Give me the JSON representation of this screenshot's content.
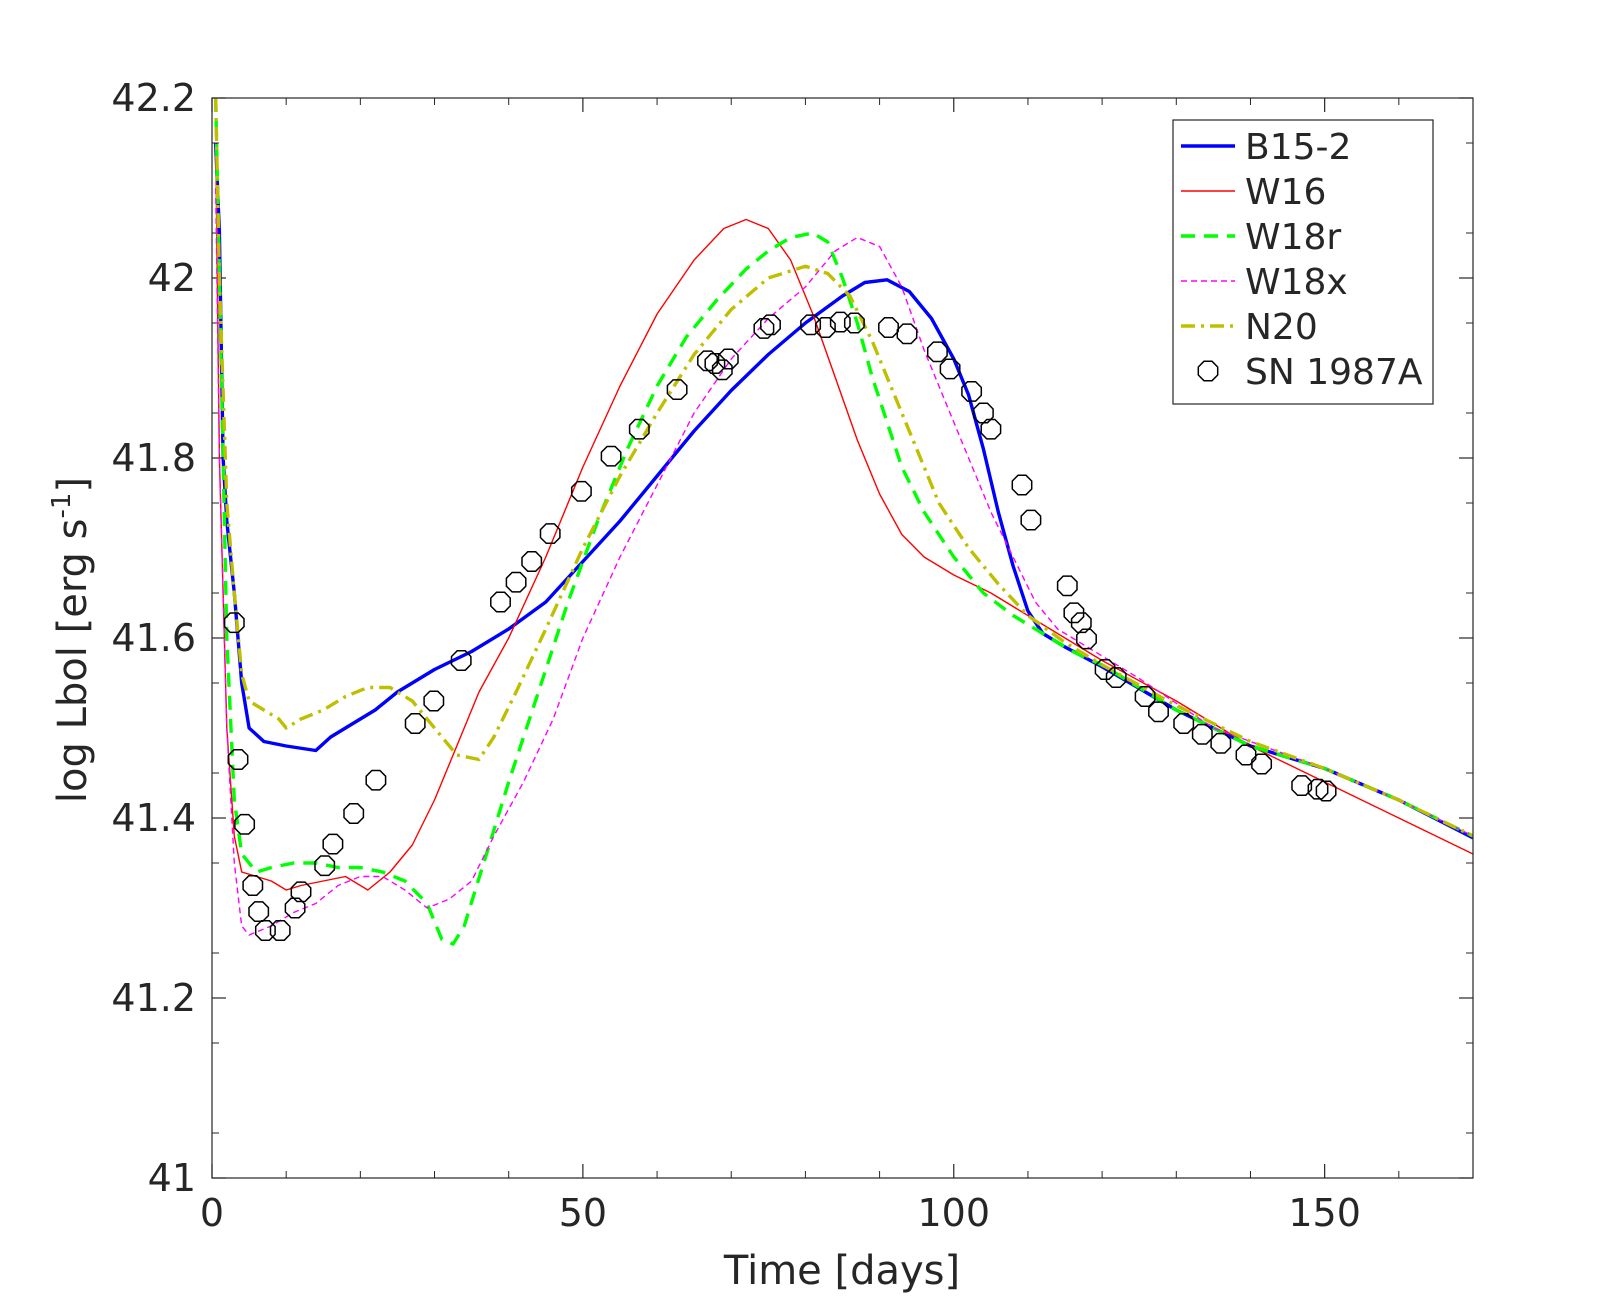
{
  "chart_data": {
    "type": "line",
    "xlabel": "Time [days]",
    "ylabel_main": "log Lbol [erg s",
    "ylabel_sup": "-1",
    "ylabel_close": "]",
    "xlim": [
      0,
      170
    ],
    "ylim": [
      41,
      42.2
    ],
    "x_ticks": [
      0,
      50,
      100,
      150
    ],
    "x_tick_labels": [
      "0",
      "50",
      "100",
      "150"
    ],
    "y_ticks": [
      41,
      41.2,
      41.4,
      41.6,
      41.8,
      42,
      42.2
    ],
    "y_tick_labels": [
      "41",
      "41.2",
      "41.4",
      "41.6",
      "41.8",
      "42",
      "42.2"
    ],
    "grid": false,
    "legend_position": "top-right",
    "series": [
      {
        "name": "B15-2",
        "color": "#0000ff",
        "style": "solid",
        "width": "thick",
        "points": [
          [
            0.5,
            42.15
          ],
          [
            1,
            42.05
          ],
          [
            1.5,
            41.8
          ],
          [
            2,
            41.73
          ],
          [
            3,
            41.65
          ],
          [
            4,
            41.55
          ],
          [
            5,
            41.5
          ],
          [
            7,
            41.485
          ],
          [
            10,
            41.48
          ],
          [
            14,
            41.475
          ],
          [
            16,
            41.49
          ],
          [
            19,
            41.505
          ],
          [
            22,
            41.52
          ],
          [
            25,
            41.54
          ],
          [
            30,
            41.565
          ],
          [
            35,
            41.585
          ],
          [
            40,
            41.61
          ],
          [
            45,
            41.64
          ],
          [
            50,
            41.685
          ],
          [
            55,
            41.73
          ],
          [
            60,
            41.78
          ],
          [
            65,
            41.83
          ],
          [
            70,
            41.875
          ],
          [
            75,
            41.915
          ],
          [
            80,
            41.95
          ],
          [
            85,
            41.98
          ],
          [
            88,
            41.995
          ],
          [
            91,
            41.998
          ],
          [
            94,
            41.985
          ],
          [
            97,
            41.955
          ],
          [
            100,
            41.91
          ],
          [
            102,
            41.87
          ],
          [
            104,
            41.81
          ],
          [
            106,
            41.74
          ],
          [
            108,
            41.68
          ],
          [
            110,
            41.63
          ],
          [
            112,
            41.605
          ],
          [
            115,
            41.59
          ],
          [
            120,
            41.568
          ],
          [
            130,
            41.52
          ],
          [
            140,
            41.48
          ],
          [
            150,
            41.455
          ],
          [
            160,
            41.42
          ],
          [
            170,
            41.378
          ]
        ]
      },
      {
        "name": "W16",
        "color": "#ff0000",
        "style": "solid",
        "width": "thin",
        "points": [
          [
            0.5,
            42.15
          ],
          [
            1,
            41.8
          ],
          [
            2,
            41.5
          ],
          [
            3,
            41.38
          ],
          [
            4,
            41.34
          ],
          [
            6,
            41.335
          ],
          [
            8,
            41.33
          ],
          [
            10,
            41.32
          ],
          [
            12,
            41.325
          ],
          [
            15,
            41.33
          ],
          [
            18,
            41.335
          ],
          [
            21,
            41.32
          ],
          [
            24,
            41.34
          ],
          [
            27,
            41.37
          ],
          [
            30,
            41.42
          ],
          [
            33,
            41.48
          ],
          [
            36,
            41.54
          ],
          [
            40,
            41.6
          ],
          [
            45,
            41.69
          ],
          [
            50,
            41.79
          ],
          [
            55,
            41.88
          ],
          [
            60,
            41.96
          ],
          [
            65,
            42.02
          ],
          [
            69,
            42.055
          ],
          [
            72,
            42.065
          ],
          [
            75,
            42.055
          ],
          [
            78,
            42.02
          ],
          [
            81,
            41.96
          ],
          [
            84,
            41.89
          ],
          [
            87,
            41.82
          ],
          [
            90,
            41.76
          ],
          [
            93,
            41.715
          ],
          [
            96,
            41.69
          ],
          [
            100,
            41.67
          ],
          [
            105,
            41.65
          ],
          [
            110,
            41.625
          ],
          [
            115,
            41.6
          ],
          [
            120,
            41.575
          ],
          [
            130,
            41.53
          ],
          [
            140,
            41.48
          ],
          [
            150,
            41.44
          ],
          [
            160,
            41.4
          ],
          [
            170,
            41.36
          ]
        ]
      },
      {
        "name": "W18r",
        "color": "#00ff00",
        "style": "dashed",
        "width": "thick",
        "points": [
          [
            0.5,
            42.2
          ],
          [
            1,
            42.0
          ],
          [
            2,
            41.6
          ],
          [
            3,
            41.42
          ],
          [
            4,
            41.36
          ],
          [
            6,
            41.34
          ],
          [
            8,
            41.345
          ],
          [
            11,
            41.35
          ],
          [
            14,
            41.35
          ],
          [
            17,
            41.345
          ],
          [
            20,
            41.345
          ],
          [
            23,
            41.34
          ],
          [
            26,
            41.33
          ],
          [
            29,
            41.305
          ],
          [
            31,
            41.265
          ],
          [
            32.5,
            41.26
          ],
          [
            34,
            41.28
          ],
          [
            37,
            41.36
          ],
          [
            40,
            41.44
          ],
          [
            44,
            41.54
          ],
          [
            48,
            41.64
          ],
          [
            52,
            41.73
          ],
          [
            56,
            41.81
          ],
          [
            60,
            41.88
          ],
          [
            64,
            41.935
          ],
          [
            68,
            41.975
          ],
          [
            72,
            42.01
          ],
          [
            75,
            42.03
          ],
          [
            78,
            42.045
          ],
          [
            81,
            42.05
          ],
          [
            83,
            42.04
          ],
          [
            85,
            42.0
          ],
          [
            87,
            41.95
          ],
          [
            89,
            41.89
          ],
          [
            91,
            41.84
          ],
          [
            93,
            41.79
          ],
          [
            96,
            41.74
          ],
          [
            100,
            41.69
          ],
          [
            104,
            41.65
          ],
          [
            108,
            41.625
          ],
          [
            112,
            41.605
          ],
          [
            116,
            41.585
          ],
          [
            120,
            41.57
          ],
          [
            130,
            41.52
          ],
          [
            140,
            41.48
          ],
          [
            150,
            41.455
          ],
          [
            160,
            41.42
          ],
          [
            170,
            41.38
          ]
        ]
      },
      {
        "name": "W18x",
        "color": "#ff00ff",
        "style": "dashed",
        "width": "thin",
        "points": [
          [
            0.5,
            42.1
          ],
          [
            1,
            41.8
          ],
          [
            2,
            41.5
          ],
          [
            3,
            41.35
          ],
          [
            4,
            41.28
          ],
          [
            5,
            41.27
          ],
          [
            8,
            41.28
          ],
          [
            11,
            41.295
          ],
          [
            14,
            41.305
          ],
          [
            17,
            41.325
          ],
          [
            20,
            41.335
          ],
          [
            23,
            41.335
          ],
          [
            26,
            41.32
          ],
          [
            29,
            41.3
          ],
          [
            32,
            41.31
          ],
          [
            35,
            41.33
          ],
          [
            38,
            41.38
          ],
          [
            42,
            41.44
          ],
          [
            46,
            41.51
          ],
          [
            50,
            41.6
          ],
          [
            55,
            41.69
          ],
          [
            60,
            41.77
          ],
          [
            65,
            41.85
          ],
          [
            70,
            41.91
          ],
          [
            75,
            41.955
          ],
          [
            80,
            41.99
          ],
          [
            84,
            42.03
          ],
          [
            87,
            42.045
          ],
          [
            90,
            42.035
          ],
          [
            93,
            41.99
          ],
          [
            96,
            41.92
          ],
          [
            99,
            41.86
          ],
          [
            102,
            41.8
          ],
          [
            105,
            41.74
          ],
          [
            108,
            41.69
          ],
          [
            111,
            41.64
          ],
          [
            114,
            41.61
          ],
          [
            118,
            41.59
          ],
          [
            125,
            41.555
          ],
          [
            135,
            41.5
          ],
          [
            150,
            41.455
          ],
          [
            160,
            41.42
          ],
          [
            170,
            41.38
          ]
        ]
      },
      {
        "name": "N20",
        "color": "#bfbf00",
        "style": "dashdot",
        "width": "thick",
        "points": [
          [
            0.5,
            42.2
          ],
          [
            1,
            42.0
          ],
          [
            2,
            41.75
          ],
          [
            3,
            41.65
          ],
          [
            4,
            41.56
          ],
          [
            5,
            41.53
          ],
          [
            7,
            41.52
          ],
          [
            9,
            41.51
          ],
          [
            10,
            41.5
          ],
          [
            12,
            41.51
          ],
          [
            15,
            41.52
          ],
          [
            18,
            41.535
          ],
          [
            21,
            41.545
          ],
          [
            24,
            41.545
          ],
          [
            27,
            41.53
          ],
          [
            30,
            41.5
          ],
          [
            33,
            41.47
          ],
          [
            36,
            41.465
          ],
          [
            38,
            41.49
          ],
          [
            41,
            41.54
          ],
          [
            45,
            41.61
          ],
          [
            50,
            41.7
          ],
          [
            55,
            41.78
          ],
          [
            60,
            41.85
          ],
          [
            65,
            41.915
          ],
          [
            70,
            41.965
          ],
          [
            75,
            42.0
          ],
          [
            80,
            42.013
          ],
          [
            83,
            42.005
          ],
          [
            86,
            41.98
          ],
          [
            89,
            41.93
          ],
          [
            92,
            41.87
          ],
          [
            95,
            41.81
          ],
          [
            98,
            41.75
          ],
          [
            102,
            41.7
          ],
          [
            106,
            41.66
          ],
          [
            110,
            41.625
          ],
          [
            115,
            41.595
          ],
          [
            120,
            41.57
          ],
          [
            130,
            41.525
          ],
          [
            140,
            41.485
          ],
          [
            150,
            41.455
          ],
          [
            160,
            41.42
          ],
          [
            170,
            41.38
          ]
        ]
      },
      {
        "name": "SN 1987A",
        "color": "#000000",
        "style": "markers",
        "points": [
          [
            3,
            41.617
          ],
          [
            3.5,
            41.465
          ],
          [
            4.4,
            41.393
          ],
          [
            5.5,
            41.325
          ],
          [
            6.3,
            41.296
          ],
          [
            7.2,
            41.275
          ],
          [
            9.2,
            41.275
          ],
          [
            11.2,
            41.3
          ],
          [
            12,
            41.318
          ],
          [
            15.2,
            41.347
          ],
          [
            16.3,
            41.371
          ],
          [
            19.1,
            41.405
          ],
          [
            22.1,
            41.442
          ],
          [
            27.4,
            41.505
          ],
          [
            29.9,
            41.53
          ],
          [
            33.6,
            41.575
          ],
          [
            38.9,
            41.64
          ],
          [
            41,
            41.662
          ],
          [
            43.1,
            41.685
          ],
          [
            45.6,
            41.716
          ],
          [
            49.8,
            41.763
          ],
          [
            53.8,
            41.802
          ],
          [
            57.6,
            41.832
          ],
          [
            62.7,
            41.876
          ],
          [
            66.8,
            41.908
          ],
          [
            67.8,
            41.905
          ],
          [
            68.8,
            41.898
          ],
          [
            69.6,
            41.91
          ],
          [
            74.4,
            41.944
          ],
          [
            75.3,
            41.948
          ],
          [
            80.7,
            41.948
          ],
          [
            82.7,
            41.945
          ],
          [
            84.7,
            41.951
          ],
          [
            86.6,
            41.95
          ],
          [
            91.2,
            41.945
          ],
          [
            93.7,
            41.938
          ],
          [
            97.8,
            41.918
          ],
          [
            99.5,
            41.899
          ],
          [
            102.4,
            41.874
          ],
          [
            104,
            41.85
          ],
          [
            105,
            41.832
          ],
          [
            109.2,
            41.77
          ],
          [
            110.4,
            41.731
          ],
          [
            115.3,
            41.658
          ],
          [
            116.2,
            41.628
          ],
          [
            117.2,
            41.617
          ],
          [
            117.9,
            41.599
          ],
          [
            120.4,
            41.565
          ],
          [
            121.9,
            41.556
          ],
          [
            125.8,
            41.535
          ],
          [
            127.6,
            41.518
          ],
          [
            131,
            41.505
          ],
          [
            133.5,
            41.493
          ],
          [
            136,
            41.483
          ],
          [
            139.4,
            41.47
          ],
          [
            141.5,
            41.46
          ],
          [
            146.9,
            41.436
          ],
          [
            149.1,
            41.432
          ],
          [
            150.2,
            41.43
          ]
        ]
      }
    ]
  }
}
